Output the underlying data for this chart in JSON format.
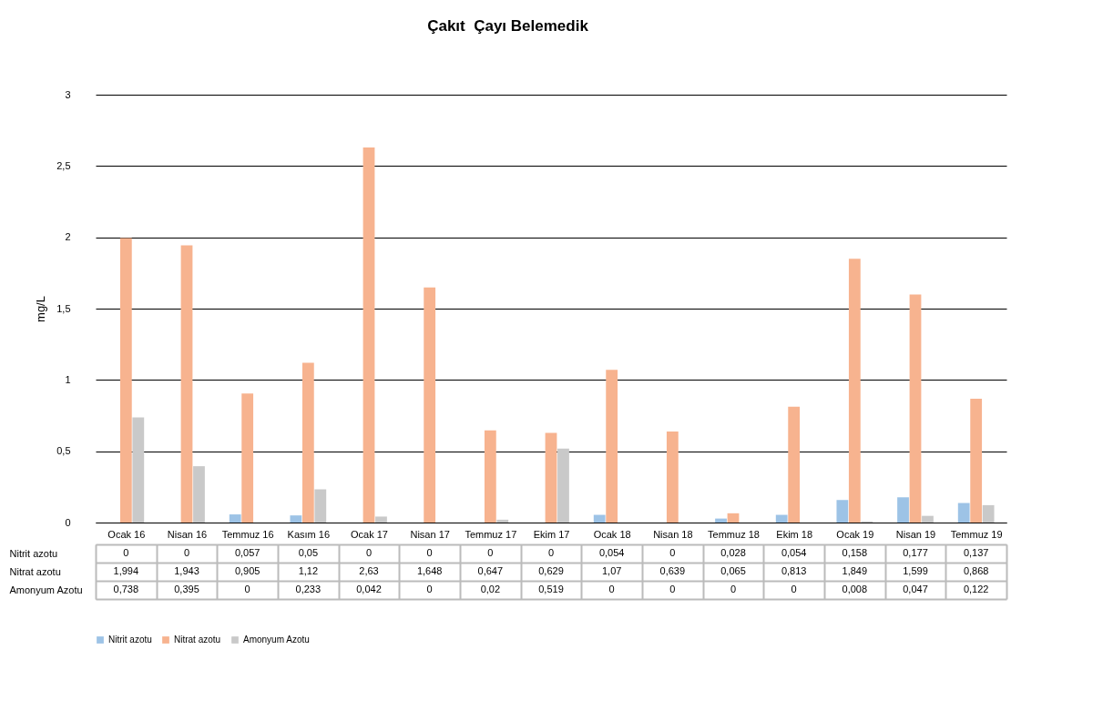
{
  "chart_data": {
    "type": "bar",
    "title": "Çakıt  Çayı Belemedik",
    "ylabel": "mg/L",
    "categories": [
      "Ocak 16",
      "Nisan 16",
      "Temmuz 16",
      "Kasım 16",
      "Ocak 17",
      "Nisan 17",
      "Temmuz 17",
      "Ekim 17",
      "Ocak 18",
      "Nisan 18",
      "Temmuz 18",
      "Ekim 18",
      "Ocak 19",
      "Nisan 19",
      "Temmuz 19"
    ],
    "series": [
      {
        "name": "Nitrit azotu",
        "color": "#9dc3e6",
        "values": [
          0,
          0,
          0.057,
          0.05,
          0,
          0,
          0,
          0,
          0.054,
          0,
          0.028,
          0.054,
          0.158,
          0.177,
          0.137
        ],
        "value_labels": [
          "0",
          "0",
          "0,057",
          "0,05",
          "0",
          "0",
          "0",
          "0",
          "0,054",
          "0",
          "0,028",
          "0,054",
          "0,158",
          "0,177",
          "0,137"
        ]
      },
      {
        "name": "Nitrat azotu",
        "color": "#f7b38f",
        "values": [
          1.994,
          1.943,
          0.905,
          1.12,
          2.63,
          1.648,
          0.647,
          0.629,
          1.07,
          0.639,
          0.065,
          0.813,
          1.849,
          1.599,
          0.868
        ],
        "value_labels": [
          "1,994",
          "1,943",
          "0,905",
          "1,12",
          "2,63",
          "1,648",
          "0,647",
          "0,629",
          "1,07",
          "0,639",
          "0,065",
          "0,813",
          "1,849",
          "1,599",
          "0,868"
        ]
      },
      {
        "name": "Amonyum Azotu",
        "color": "#c9c9c9",
        "values": [
          0.738,
          0.395,
          0,
          0.233,
          0.042,
          0,
          0.02,
          0.519,
          0,
          0,
          0,
          0,
          0.008,
          0.047,
          0.122
        ],
        "value_labels": [
          "0,738",
          "0,395",
          "0",
          "0,233",
          "0,042",
          "0",
          "0,02",
          "0,519",
          "0",
          "0",
          "0",
          "0",
          "0,008",
          "0,047",
          "0,122"
        ]
      }
    ],
    "ylim": [
      0,
      3
    ],
    "yticks": [
      0,
      {
        "value": 0.5,
        "label": "0,5"
      },
      1,
      {
        "value": 1.5,
        "label": "1,5"
      },
      2,
      {
        "value": 2.5,
        "label": "2,5"
      },
      3
    ],
    "grid": "y",
    "legend": "bottom"
  }
}
